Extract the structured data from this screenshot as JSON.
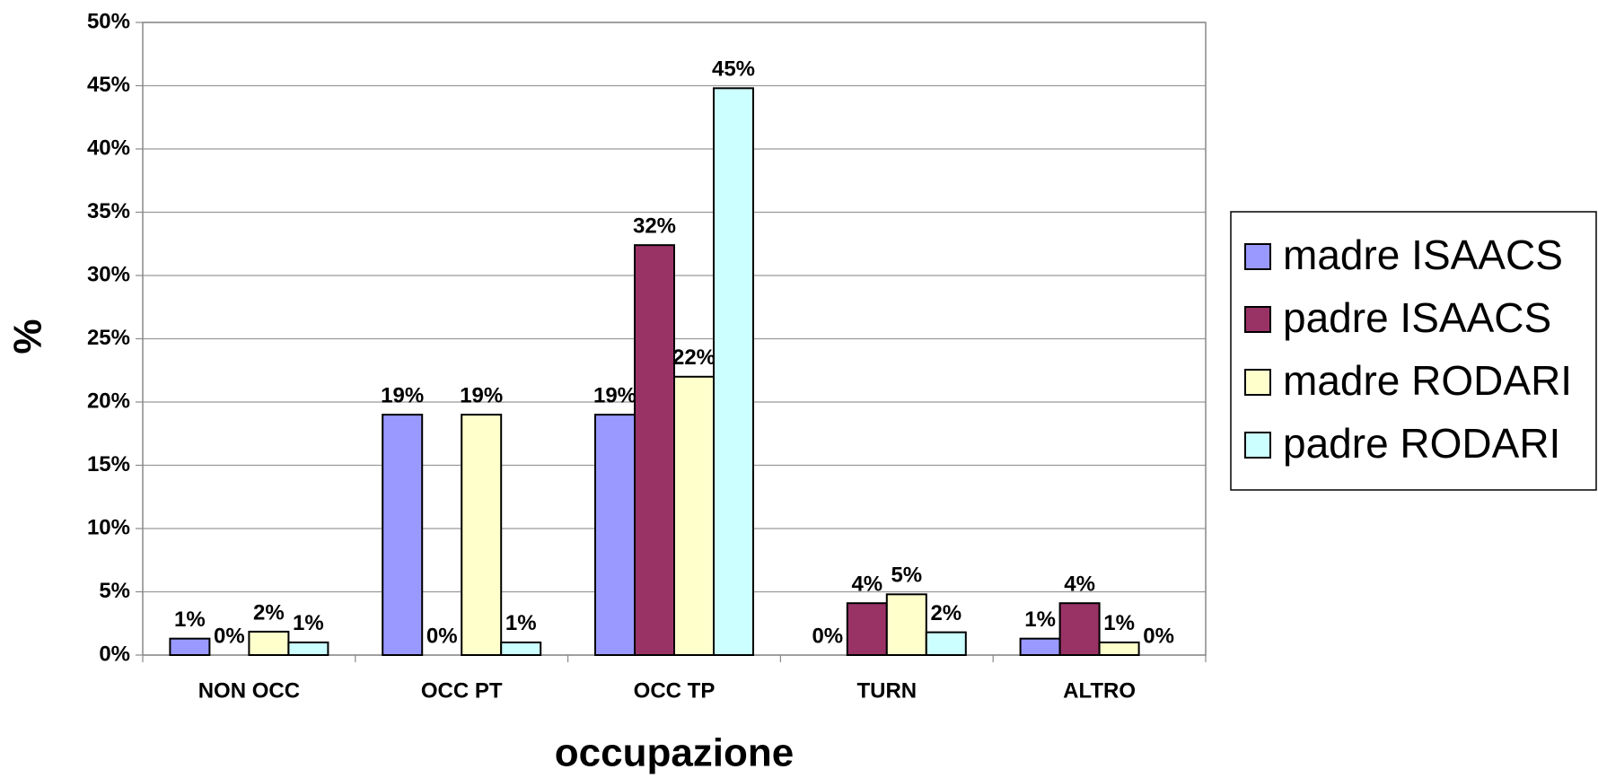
{
  "chart_data": {
    "type": "bar",
    "x_label": "occupazione",
    "y_label": "%",
    "categories": [
      "NON OCC",
      "OCC PT",
      "OCC TP",
      "TURN",
      "ALTRO"
    ],
    "series": [
      {
        "name": "madre ISAACS",
        "color": "#9999ff",
        "values": [
          1.3,
          19.0,
          19.0,
          0,
          1.3
        ],
        "value_labels": [
          "1%",
          "19%",
          "19%",
          "0%",
          "1%"
        ]
      },
      {
        "name": "padre ISAACS",
        "color": "#993366",
        "values": [
          0,
          0,
          32.4,
          4.1,
          4.1
        ],
        "value_labels": [
          "0%",
          "0%",
          "32%",
          "4%",
          "4%"
        ]
      },
      {
        "name": "madre RODARI",
        "color": "#ffffcc",
        "values": [
          1.85,
          19.0,
          22.0,
          4.8,
          1.0
        ],
        "value_labels": [
          "2%",
          "19%",
          "22%",
          "5%",
          "1%"
        ]
      },
      {
        "name": "padre RODARI",
        "color": "#ccffff",
        "values": [
          1.0,
          1.0,
          44.8,
          1.8,
          0
        ],
        "value_labels": [
          "1%",
          "1%",
          "45%",
          "2%",
          "0%"
        ]
      }
    ],
    "ylim": [
      0,
      50
    ],
    "yticks": [
      {
        "value": 0,
        "label": "0%"
      },
      {
        "value": 5,
        "label": "5%"
      },
      {
        "value": 10,
        "label": "10%"
      },
      {
        "value": 15,
        "label": "15%"
      },
      {
        "value": 20,
        "label": "20%"
      },
      {
        "value": 25,
        "label": "25%"
      },
      {
        "value": 30,
        "label": "30%"
      },
      {
        "value": 35,
        "label": "35%"
      },
      {
        "value": 40,
        "label": "40%"
      },
      {
        "value": 45,
        "label": "45%"
      },
      {
        "value": 50,
        "label": "50%"
      }
    ],
    "grid": true,
    "legend": "right"
  }
}
